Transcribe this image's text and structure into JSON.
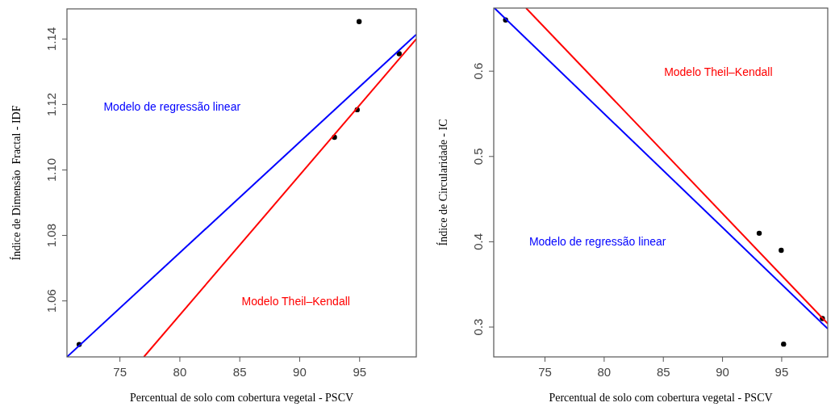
{
  "chart_data": [
    {
      "type": "scatter",
      "xlabel": "Percentual de solo com cobertura vegetal - PSCV",
      "ylabel": "Índice de Dimensão  Fractal - IDF",
      "xlim": [
        70.58,
        99.73
      ],
      "ylim": [
        1.0429,
        1.1492
      ],
      "xticks": [
        75,
        80,
        85,
        90,
        95
      ],
      "yticks": [
        1.06,
        1.08,
        {
          "value": 1.1,
          "label": "1.10"
        },
        1.12,
        1.14
      ],
      "grid": false,
      "series": [
        {
          "color": "#000000",
          "marker": "circle",
          "x": [
            71.6,
            92.9,
            94.8,
            94.96,
            98.3
          ],
          "values": [
            1.0467,
            1.11,
            1.1184,
            1.1453,
            1.1355
          ]
        },
        {
          "type": "line",
          "name": "Modelo de regressão linear",
          "color": "#0000ff",
          "line_style": "solid",
          "x": [
            70.58,
            99.73
          ],
          "values": [
            1.0429,
            1.1414
          ]
        },
        {
          "type": "line",
          "name": "Modelo Theil–Kendall",
          "color": "#ff0000",
          "line_style": "solid",
          "x": [
            77.0,
            99.73
          ],
          "values": [
            1.0429,
            1.14
          ]
        }
      ]
    },
    {
      "type": "scatter",
      "xlabel": "Percentual de solo com cobertura vegetal - PSCV",
      "ylabel": "Índice de Circularidade - IC",
      "xlim": [
        70.67,
        98.89
      ],
      "ylim": [
        0.265,
        0.674
      ],
      "xticks": [
        75,
        80,
        85,
        90,
        95
      ],
      "yticks": [
        0.3,
        0.4,
        0.5,
        0.6
      ],
      "grid": false,
      "series": [
        {
          "color": "#000000",
          "marker": "circle",
          "x": [
            71.67,
            93.1,
            94.96,
            95.16,
            98.44
          ],
          "values": [
            0.66,
            0.41,
            0.39,
            0.28,
            0.31
          ]
        },
        {
          "type": "line",
          "name": "Modelo de regressão linear",
          "color": "#0000ff",
          "line_style": "solid",
          "x": [
            70.73,
            98.89
          ],
          "values": [
            0.674,
            0.298
          ]
        },
        {
          "type": "line",
          "name": "Modelo Theil–Kendall",
          "color": "#ff0000",
          "line_style": "solid",
          "x": [
            73.4,
            98.89
          ],
          "values": [
            0.674,
            0.304
          ]
        }
      ]
    }
  ]
}
